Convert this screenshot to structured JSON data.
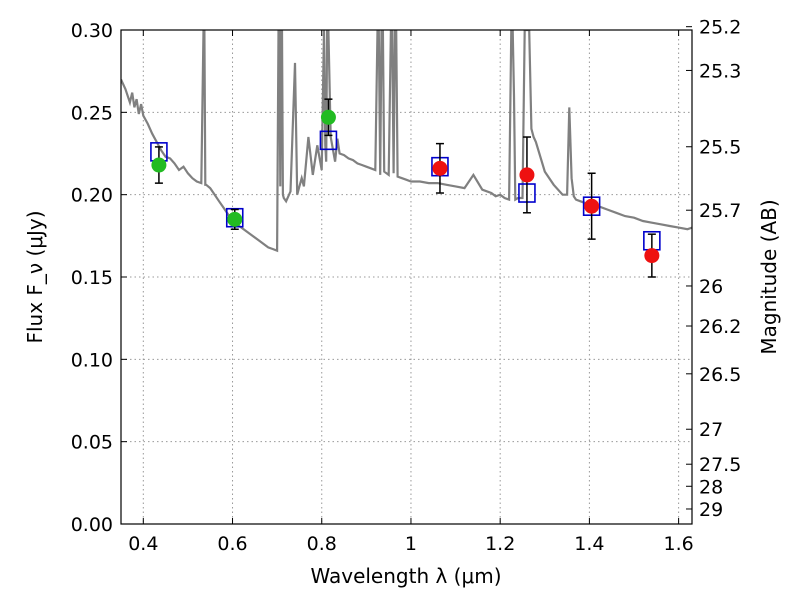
{
  "chart_data": {
    "type": "scatter",
    "title": "",
    "xlabel": "Wavelength λ (μm)",
    "ylabel": "Flux F_ν (μJy)",
    "y2label": "Magnitude (AB)",
    "xlim": [
      0.35,
      1.63
    ],
    "ylim": [
      0.0,
      0.3
    ],
    "grid": true,
    "x_ticks": [
      0.4,
      0.6,
      0.8,
      1.0,
      1.2,
      1.4,
      1.6
    ],
    "x_tick_labels": [
      "0.4",
      "0.6",
      "0.8",
      "1",
      "1.2",
      "1.4",
      "1.6"
    ],
    "y_ticks": [
      0.0,
      0.05,
      0.1,
      0.15,
      0.2,
      0.25,
      0.3
    ],
    "y_tick_labels": [
      "0.00",
      "0.05",
      "0.10",
      "0.15",
      "0.20",
      "0.25",
      "0.30"
    ],
    "y2_ticks": [
      {
        "label": "25.2",
        "mag": 25.2
      },
      {
        "label": "25.3",
        "mag": 25.3
      },
      {
        "label": "25.5",
        "mag": 25.5
      },
      {
        "label": "25.7",
        "mag": 25.7
      },
      {
        "label": "26",
        "mag": 26.0
      },
      {
        "label": "26.2",
        "mag": 26.2
      },
      {
        "label": "26.5",
        "mag": 26.5
      },
      {
        "label": "27",
        "mag": 27.0
      },
      {
        "label": "27.5",
        "mag": 27.5
      },
      {
        "label": "28",
        "mag": 28.0
      },
      {
        "label": "29",
        "mag": 29.0
      }
    ],
    "colors": {
      "model": "#808080",
      "model_photometry": "#0000cc",
      "optical": "#22bb22",
      "nir": "#ee1111",
      "errorbar": "#000000",
      "grid": "#999999"
    },
    "model_spectrum": {
      "x": [
        0.35,
        0.36,
        0.37,
        0.375,
        0.38,
        0.385,
        0.39,
        0.395,
        0.4,
        0.41,
        0.42,
        0.43,
        0.44,
        0.45,
        0.46,
        0.47,
        0.48,
        0.49,
        0.5,
        0.51,
        0.52,
        0.53,
        0.535,
        0.537,
        0.539,
        0.541,
        0.55,
        0.56,
        0.57,
        0.58,
        0.59,
        0.6,
        0.62,
        0.64,
        0.66,
        0.68,
        0.69,
        0.7,
        0.703,
        0.705,
        0.707,
        0.709,
        0.711,
        0.713,
        0.715,
        0.72,
        0.73,
        0.74,
        0.745,
        0.75,
        0.755,
        0.76,
        0.77,
        0.78,
        0.79,
        0.8,
        0.805,
        0.808,
        0.81,
        0.812,
        0.815,
        0.82,
        0.83,
        0.835,
        0.84,
        0.85,
        0.86,
        0.87,
        0.88,
        0.89,
        0.9,
        0.91,
        0.92,
        0.925,
        0.928,
        0.931,
        0.934,
        0.937,
        0.94,
        0.95,
        0.955,
        0.958,
        0.961,
        0.964,
        0.967,
        0.97,
        0.98,
        0.99,
        1.0,
        1.02,
        1.04,
        1.06,
        1.08,
        1.1,
        1.12,
        1.14,
        1.16,
        1.18,
        1.19,
        1.2,
        1.21,
        1.22,
        1.225,
        1.228,
        1.231,
        1.234,
        1.24,
        1.25,
        1.255,
        1.258,
        1.26,
        1.262,
        1.265,
        1.27,
        1.275,
        1.28,
        1.3,
        1.32,
        1.34,
        1.35,
        1.355,
        1.36,
        1.365,
        1.37,
        1.38,
        1.4,
        1.42,
        1.44,
        1.46,
        1.48,
        1.5,
        1.52,
        1.54,
        1.56,
        1.58,
        1.6,
        1.62,
        1.63
      ],
      "y": [
        0.27,
        0.264,
        0.256,
        0.262,
        0.253,
        0.258,
        0.249,
        0.255,
        0.248,
        0.243,
        0.237,
        0.232,
        0.227,
        0.223,
        0.222,
        0.219,
        0.215,
        0.217,
        0.213,
        0.21,
        0.208,
        0.207,
        0.3,
        0.3,
        0.206,
        0.206,
        0.204,
        0.2,
        0.196,
        0.192,
        0.188,
        0.184,
        0.18,
        0.176,
        0.172,
        0.168,
        0.167,
        0.166,
        0.3,
        0.3,
        0.205,
        0.3,
        0.3,
        0.2,
        0.198,
        0.196,
        0.202,
        0.28,
        0.2,
        0.205,
        0.21,
        0.205,
        0.235,
        0.212,
        0.23,
        0.215,
        0.3,
        0.23,
        0.22,
        0.3,
        0.3,
        0.235,
        0.22,
        0.234,
        0.225,
        0.224,
        0.222,
        0.221,
        0.219,
        0.218,
        0.217,
        0.216,
        0.215,
        0.3,
        0.3,
        0.212,
        0.3,
        0.3,
        0.214,
        0.212,
        0.3,
        0.3,
        0.213,
        0.3,
        0.3,
        0.211,
        0.21,
        0.209,
        0.208,
        0.208,
        0.207,
        0.207,
        0.206,
        0.205,
        0.204,
        0.212,
        0.203,
        0.201,
        0.199,
        0.2,
        0.198,
        0.197,
        0.3,
        0.3,
        0.26,
        0.197,
        0.198,
        0.198,
        0.3,
        0.3,
        0.3,
        0.3,
        0.3,
        0.24,
        0.235,
        0.232,
        0.214,
        0.206,
        0.2,
        0.2,
        0.253,
        0.21,
        0.199,
        0.197,
        0.196,
        0.194,
        0.193,
        0.191,
        0.189,
        0.187,
        0.186,
        0.184,
        0.183,
        0.182,
        0.181,
        0.18,
        0.179,
        0.18
      ]
    },
    "series": [
      {
        "role": "model_photometry",
        "marker": "square",
        "x": [
          0.435,
          0.605,
          0.815,
          1.065,
          1.26,
          1.405,
          1.54
        ],
        "y": [
          0.226,
          0.186,
          0.233,
          0.217,
          0.201,
          0.193,
          0.172
        ]
      },
      {
        "role": "optical",
        "marker": "circle",
        "x": [
          0.435,
          0.605,
          0.815
        ],
        "y": [
          0.218,
          0.185,
          0.247
        ],
        "yerr": [
          0.011,
          0.006,
          0.011
        ]
      },
      {
        "role": "nir",
        "marker": "circle",
        "x": [
          1.065,
          1.26,
          1.405,
          1.54
        ],
        "y": [
          0.216,
          0.212,
          0.193,
          0.163
        ],
        "yerr": [
          0.015,
          0.023,
          0.02,
          0.013
        ]
      }
    ]
  }
}
